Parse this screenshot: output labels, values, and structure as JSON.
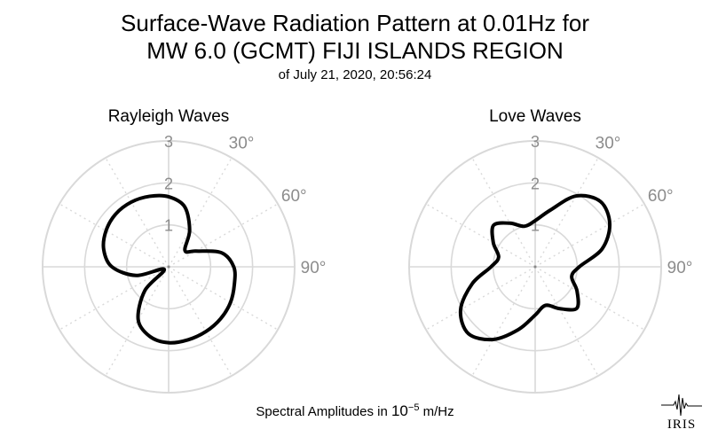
{
  "header": {
    "title_line1": "Surface-Wave Radiation Pattern at 0.01Hz for",
    "title_line2": "MW 6.0 (GCMT) FIJI ISLANDS REGION",
    "subtitle": "of July 21, 2020, 20:56:24"
  },
  "footer": {
    "prefix": "Spectral Amplitudes in ",
    "base": "10",
    "exponent": "−5",
    "unit": " m/Hz"
  },
  "logo": {
    "text": "IRIS"
  },
  "colors": {
    "pattern": "#000000",
    "grid": "#d9d9d9",
    "ring_label": "#8c8c8c"
  },
  "chart_data": [
    {
      "type": "polar-line",
      "title": "Rayleigh Waves",
      "r_ticks": [
        "1",
        "2",
        "3"
      ],
      "angle_ticks": [
        "30°",
        "60°",
        "90°"
      ],
      "rlim": [
        0,
        3
      ],
      "series": [
        {
          "azimuth_deg": [
            0,
            15,
            30,
            45,
            60,
            75,
            90,
            105,
            120,
            135,
            150,
            165,
            180,
            195,
            210,
            225,
            240,
            255,
            270,
            285,
            300,
            315,
            330,
            345
          ],
          "amplitude": [
            1.67,
            1.48,
            1.0,
            0.55,
            0.75,
            1.3,
            1.55,
            1.62,
            1.7,
            1.75,
            1.78,
            1.8,
            1.81,
            1.72,
            1.45,
            0.8,
            0.12,
            0.8,
            1.35,
            1.6,
            1.72,
            1.78,
            1.78,
            1.74
          ]
        }
      ]
    },
    {
      "type": "polar-line",
      "title": "Love Waves",
      "r_ticks": [
        "1",
        "2",
        "3"
      ],
      "angle_ticks": [
        "30°",
        "60°",
        "90°"
      ],
      "rlim": [
        0,
        3
      ],
      "series": [
        {
          "azimuth_deg": [
            0,
            15,
            30,
            45,
            60,
            75,
            90,
            105,
            120,
            135,
            150,
            165,
            180,
            195,
            210,
            225,
            240,
            255,
            270,
            285,
            300,
            315,
            330,
            345
          ],
          "amplitude": [
            1.1,
            1.4,
            1.95,
            2.2,
            2.05,
            1.65,
            1.05,
            0.9,
            1.15,
            1.4,
            1.15,
            0.95,
            1.15,
            1.55,
            2.0,
            2.25,
            2.05,
            1.55,
            1.05,
            0.9,
            1.15,
            1.4,
            1.2,
            1.0
          ]
        }
      ]
    }
  ]
}
